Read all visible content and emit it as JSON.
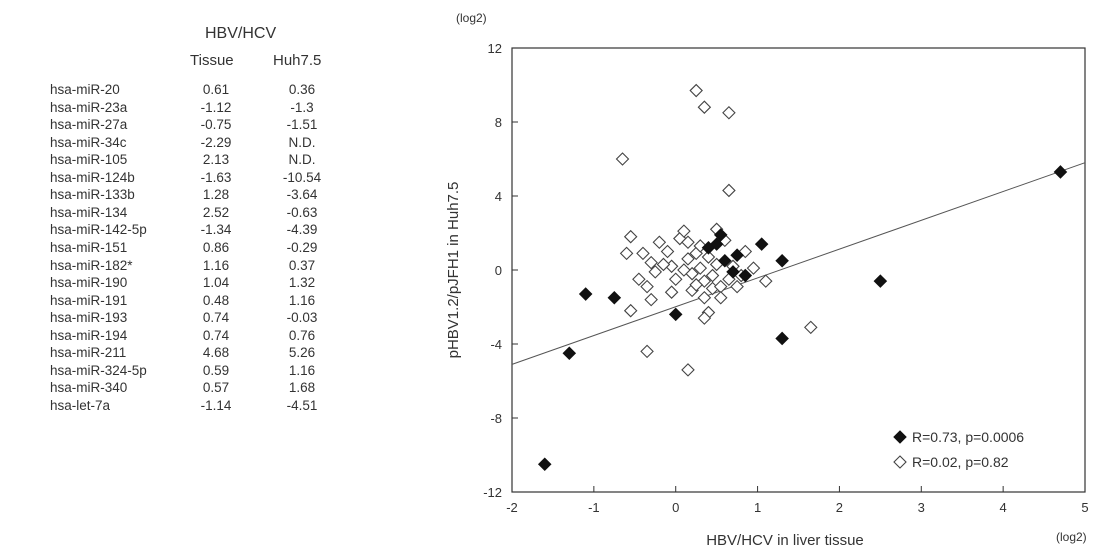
{
  "table": {
    "group_header": "HBV/HCV",
    "col1_header": "Tissue",
    "col2_header": "Huh7.5",
    "rows": [
      {
        "name": "hsa-miR-20",
        "tissue": "0.61",
        "huh": "0.36"
      },
      {
        "name": "hsa-miR-23a",
        "tissue": "-1.12",
        "huh": "-1.3"
      },
      {
        "name": "hsa-miR-27a",
        "tissue": "-0.75",
        "huh": "-1.51"
      },
      {
        "name": "hsa-miR-34c",
        "tissue": "-2.29",
        "huh": "N.D."
      },
      {
        "name": "hsa-miR-105",
        "tissue": "2.13",
        "huh": "N.D."
      },
      {
        "name": "hsa-miR-124b",
        "tissue": "-1.63",
        "huh": "-10.54"
      },
      {
        "name": "hsa-miR-133b",
        "tissue": "1.28",
        "huh": "-3.64"
      },
      {
        "name": "hsa-miR-134",
        "tissue": "2.52",
        "huh": "-0.63"
      },
      {
        "name": "hsa-miR-142-5p",
        "tissue": "-1.34",
        "huh": "-4.39"
      },
      {
        "name": "hsa-miR-151",
        "tissue": "0.86",
        "huh": "-0.29"
      },
      {
        "name": "hsa-miR-182*",
        "tissue": "1.16",
        "huh": "0.37"
      },
      {
        "name": "hsa-miR-190",
        "tissue": "1.04",
        "huh": "1.32"
      },
      {
        "name": "hsa-miR-191",
        "tissue": "0.48",
        "huh": "1.16"
      },
      {
        "name": "hsa-miR-193",
        "tissue": "0.74",
        "huh": "-0.03"
      },
      {
        "name": "hsa-miR-194",
        "tissue": "0.74",
        "huh": "0.76"
      },
      {
        "name": "hsa-miR-211",
        "tissue": "4.68",
        "huh": "5.26"
      },
      {
        "name": "hsa-miR-324-5p",
        "tissue": "0.59",
        "huh": "1.16"
      },
      {
        "name": "hsa-miR-340",
        "tissue": "0.57",
        "huh": "1.68"
      },
      {
        "name": "hsa-let-7a",
        "tissue": "-1.14",
        "huh": "-4.51"
      }
    ]
  },
  "chart_data": {
    "type": "scatter",
    "xlabel": "HBV/HCV in liver tissue",
    "ylabel": "pHBV1.2/pJFH1 in Huh7.5",
    "x_unit": "(log2)",
    "y_unit": "(log2)",
    "xlim": [
      -2,
      5
    ],
    "ylim": [
      -12,
      12
    ],
    "xticks": [
      "-2",
      "-1",
      "0",
      "1",
      "2",
      "3",
      "4",
      "5"
    ],
    "yticks": [
      "12",
      "8",
      "4",
      "0",
      "-4",
      "-8",
      "-12"
    ],
    "series": [
      {
        "name": "R=0.73, p=0.0006",
        "marker": "filled-diamond",
        "color": "#111111",
        "points": [
          [
            -1.6,
            -10.5
          ],
          [
            -1.3,
            -4.5
          ],
          [
            -1.1,
            -1.3
          ],
          [
            -0.75,
            -1.5
          ],
          [
            0.0,
            -2.4
          ],
          [
            0.4,
            1.2
          ],
          [
            0.5,
            1.4
          ],
          [
            0.55,
            1.9
          ],
          [
            0.6,
            0.5
          ],
          [
            0.7,
            -0.1
          ],
          [
            0.75,
            0.8
          ],
          [
            0.85,
            -0.3
          ],
          [
            1.05,
            1.4
          ],
          [
            1.3,
            0.5
          ],
          [
            1.3,
            -3.7
          ],
          [
            2.5,
            -0.6
          ],
          [
            4.7,
            5.3
          ]
        ]
      },
      {
        "name": "R=0.02, p=0.82",
        "marker": "open-diamond",
        "color": "#444444",
        "points": [
          [
            -0.65,
            6.0
          ],
          [
            0.25,
            9.7
          ],
          [
            0.35,
            8.8
          ],
          [
            0.65,
            8.5
          ],
          [
            0.65,
            4.3
          ],
          [
            -0.55,
            1.8
          ],
          [
            -0.6,
            0.9
          ],
          [
            -0.4,
            0.9
          ],
          [
            -0.45,
            -0.5
          ],
          [
            -0.3,
            0.4
          ],
          [
            -0.2,
            1.5
          ],
          [
            -0.25,
            -0.1
          ],
          [
            -0.35,
            -0.9
          ],
          [
            -0.3,
            -1.6
          ],
          [
            -0.1,
            1.0
          ],
          [
            -0.05,
            0.2
          ],
          [
            0.0,
            -0.5
          ],
          [
            0.05,
            1.7
          ],
          [
            0.1,
            2.1
          ],
          [
            0.15,
            1.5
          ],
          [
            0.15,
            0.6
          ],
          [
            0.2,
            -0.2
          ],
          [
            0.2,
            -1.1
          ],
          [
            0.25,
            0.9
          ],
          [
            0.3,
            1.3
          ],
          [
            0.3,
            0.1
          ],
          [
            0.35,
            -0.6
          ],
          [
            0.35,
            -1.5
          ],
          [
            0.4,
            0.7
          ],
          [
            0.45,
            -0.3
          ],
          [
            0.45,
            -1.0
          ],
          [
            0.5,
            2.2
          ],
          [
            0.5,
            0.3
          ],
          [
            0.55,
            -0.9
          ],
          [
            0.6,
            1.6
          ],
          [
            0.65,
            -0.5
          ],
          [
            0.7,
            0.2
          ],
          [
            0.75,
            -0.9
          ],
          [
            0.8,
            -0.3
          ],
          [
            0.85,
            1.0
          ],
          [
            0.4,
            -2.3
          ],
          [
            0.35,
            -2.6
          ],
          [
            -0.55,
            -2.2
          ],
          [
            -0.35,
            -4.4
          ],
          [
            0.15,
            -5.4
          ],
          [
            1.1,
            -0.6
          ],
          [
            1.65,
            -3.1
          ],
          [
            0.95,
            0.1
          ],
          [
            -0.05,
            -1.2
          ],
          [
            0.55,
            -1.5
          ],
          [
            -0.15,
            0.3
          ],
          [
            0.25,
            -0.8
          ],
          [
            0.1,
            0.0
          ]
        ]
      }
    ],
    "regression_line": {
      "x": [
        -2,
        5
      ],
      "y": [
        -5.1,
        5.8
      ]
    }
  }
}
